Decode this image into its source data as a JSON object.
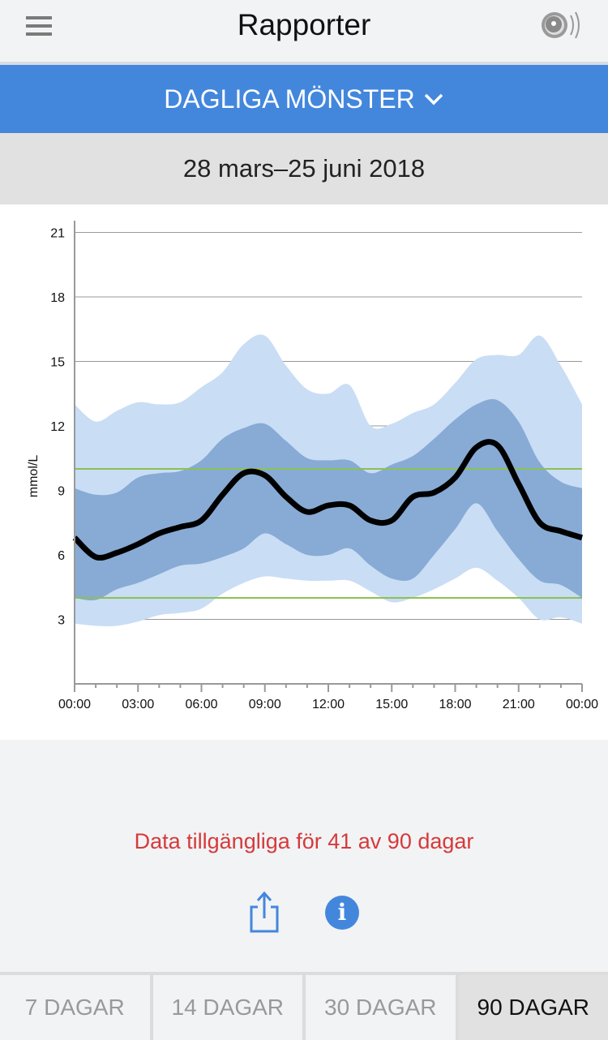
{
  "header": {
    "title": "Rapporter",
    "menu_icon": "hamburger-icon",
    "sensor_icon": "sensor-scan-icon"
  },
  "report_selector": {
    "label": "DAGLIGA MÖNSTER",
    "icon": "chevron-down-icon"
  },
  "date_range": "28 mars–25 juni 2018",
  "chart_data": {
    "type": "area",
    "title": "Dagliga mönster",
    "ylabel": "mmol/L",
    "xlabel": "",
    "ylim": [
      0,
      21
    ],
    "yticks": [
      "3",
      "6",
      "9",
      "12",
      "15",
      "18",
      "21"
    ],
    "ytick_values": [
      3,
      6,
      9,
      12,
      15,
      18,
      21
    ],
    "xlim": [
      0,
      24
    ],
    "xticks": [
      "00:00",
      "03:00",
      "06:00",
      "09:00",
      "12:00",
      "15:00",
      "18:00",
      "21:00",
      "00:00"
    ],
    "target_range": [
      4,
      10
    ],
    "x": [
      0,
      1,
      2,
      3,
      4,
      5,
      6,
      7,
      8,
      9,
      10,
      11,
      12,
      13,
      14,
      15,
      16,
      17,
      18,
      19,
      20,
      21,
      22,
      23,
      24
    ],
    "series": [
      {
        "name": "P90",
        "values": [
          13.0,
          12.2,
          12.7,
          13.1,
          13.0,
          13.1,
          13.8,
          14.5,
          15.8,
          16.2,
          14.8,
          13.7,
          13.5,
          13.9,
          12.0,
          12.1,
          12.6,
          13.0,
          14.0,
          15.1,
          15.3,
          15.3,
          16.2,
          14.8,
          13.0
        ]
      },
      {
        "name": "P75",
        "values": [
          9.1,
          8.8,
          8.9,
          9.6,
          9.8,
          9.9,
          10.4,
          11.4,
          11.9,
          12.1,
          11.3,
          10.5,
          10.4,
          10.4,
          9.8,
          10.2,
          10.6,
          11.4,
          12.3,
          13.0,
          13.2,
          12.2,
          10.3,
          9.4,
          9.1
        ]
      },
      {
        "name": "Median",
        "values": [
          6.8,
          5.9,
          6.1,
          6.5,
          7.0,
          7.3,
          7.6,
          8.8,
          9.8,
          9.7,
          8.7,
          8.0,
          8.3,
          8.3,
          7.6,
          7.6,
          8.7,
          8.9,
          9.6,
          11.0,
          11.1,
          9.3,
          7.5,
          7.1,
          6.8
        ]
      },
      {
        "name": "P25",
        "values": [
          4.0,
          3.9,
          4.4,
          4.7,
          5.1,
          5.5,
          5.6,
          5.9,
          6.3,
          7.0,
          6.5,
          6.0,
          6.0,
          6.3,
          5.5,
          4.9,
          4.9,
          6.0,
          7.2,
          8.4,
          7.1,
          5.8,
          4.8,
          4.6,
          4.0
        ]
      },
      {
        "name": "P10",
        "values": [
          2.8,
          2.7,
          2.7,
          2.9,
          3.2,
          3.3,
          3.5,
          4.2,
          4.7,
          5.0,
          4.9,
          4.8,
          4.8,
          4.8,
          4.3,
          3.8,
          4.0,
          4.4,
          4.9,
          5.4,
          4.8,
          4.0,
          3.0,
          3.1,
          2.8
        ]
      }
    ],
    "colors": {
      "outer": "#c9ddf5",
      "inner": "#87abd5",
      "median": "#000000",
      "target": "#8cc152",
      "grid": "#999999"
    }
  },
  "availability_message": "Data tillgängliga för 41 av 90 dagar",
  "actions": {
    "share_icon": "share-icon",
    "info_icon": "info-icon",
    "info_glyph": "i"
  },
  "period_tabs": [
    {
      "label": "7 DAGAR",
      "active": false
    },
    {
      "label": "14 DAGAR",
      "active": false
    },
    {
      "label": "30 DAGAR",
      "active": false
    },
    {
      "label": "90 DAGAR",
      "active": true
    }
  ]
}
